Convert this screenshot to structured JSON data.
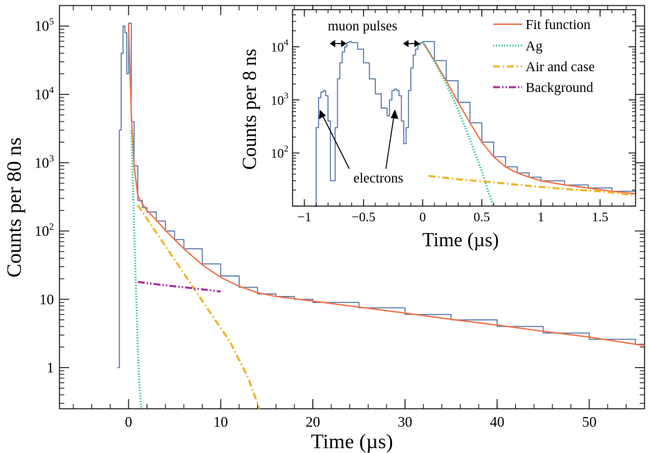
{
  "chart_data": [
    {
      "type": "line",
      "name": "main",
      "xlabel": "Time (µs)",
      "ylabel": "Counts per 80 ns",
      "xlim": [
        -7.5,
        56
      ],
      "ylim": [
        0.25,
        200000
      ],
      "yscale": "log",
      "grid": false,
      "x_ticks": [
        0,
        10,
        20,
        30,
        40,
        50
      ],
      "x_tick_labels": [
        "0",
        "10",
        "20",
        "30",
        "40",
        "50"
      ],
      "y_ticks": [
        1,
        10,
        100,
        1000,
        10000,
        100000
      ],
      "y_tick_labels": [
        {
          "base": "1",
          "exp": ""
        },
        {
          "base": "10",
          "exp": ""
        },
        {
          "base": "10",
          "exp": "2"
        },
        {
          "base": "10",
          "exp": "3"
        },
        {
          "base": "10",
          "exp": "4"
        },
        {
          "base": "10",
          "exp": "5"
        }
      ],
      "series": [
        {
          "role": "Data",
          "color": "#4a6fa5",
          "style": "histogram",
          "x": [
            -1.2,
            -1.0,
            -0.8,
            -0.6,
            -0.4,
            -0.2,
            0.0,
            0.3,
            0.6,
            1.0,
            1.5,
            2,
            3,
            4,
            5,
            6,
            8,
            10,
            12,
            14,
            16,
            18,
            20,
            25,
            30,
            35,
            40,
            45,
            50,
            55
          ],
          "y": [
            1,
            3000,
            40000,
            100000,
            80000,
            20000,
            110000,
            4000,
            900,
            280,
            220,
            190,
            140,
            100,
            75,
            55,
            33,
            22,
            15,
            12,
            11,
            10,
            9,
            7.5,
            6,
            5,
            4,
            3.2,
            2.6,
            2.2
          ]
        },
        {
          "role": "Fit function",
          "color": "#f0734a",
          "style": "solid",
          "x": [
            0,
            0.3,
            0.6,
            1.0,
            1.5,
            2,
            3,
            4,
            5,
            6,
            8,
            10,
            12,
            14,
            16,
            18,
            20,
            25,
            30,
            35,
            40,
            45,
            50,
            56
          ],
          "y": [
            110000,
            5000,
            900,
            330,
            250,
            200,
            145,
            102,
            75,
            55,
            32,
            21,
            15.5,
            12.5,
            11,
            10.2,
            9.4,
            7.7,
            6.3,
            5.1,
            4.2,
            3.4,
            2.8,
            2.1
          ]
        },
        {
          "role": "Ag",
          "color": "#2ec28e",
          "style": "dotted",
          "x": [
            0.3,
            0.6,
            0.8,
            1.0,
            1.2,
            1.4
          ],
          "y": [
            3000,
            120,
            15,
            2,
            0.5,
            0.25
          ]
        },
        {
          "role": "Air and case",
          "color": "#f0b429",
          "style": "dashdot",
          "x": [
            1.0,
            3,
            5,
            7,
            9,
            11,
            13,
            14.2
          ],
          "y": [
            240,
            95,
            38,
            15,
            6,
            2.4,
            0.7,
            0.25
          ]
        },
        {
          "role": "Background",
          "color": "#a5329e",
          "style": "dashdotdot",
          "x": [
            1.0,
            4,
            7,
            10
          ],
          "y": [
            18,
            16,
            14.5,
            13
          ]
        }
      ]
    },
    {
      "type": "line",
      "name": "inset",
      "xlabel": "Time (µs)",
      "ylabel": "Counts per 8 ns",
      "xlim": [
        -1.1,
        1.8
      ],
      "ylim": [
        10,
        50000
      ],
      "yscale": "log",
      "grid": false,
      "x_ticks": [
        -1,
        -0.5,
        0,
        0.5,
        1,
        1.5
      ],
      "x_tick_labels": [
        "−1",
        "−0.5",
        "0",
        "0.5",
        "1",
        "1.5"
      ],
      "y_ticks": [
        100,
        1000,
        10000
      ],
      "y_tick_labels": [
        {
          "base": "10",
          "exp": "2"
        },
        {
          "base": "10",
          "exp": "3"
        },
        {
          "base": "10",
          "exp": "4"
        }
      ],
      "legend_position": "top-right",
      "legend": [
        {
          "label": "Fit function",
          "color": "#f0734a",
          "style": "solid"
        },
        {
          "label": "Ag",
          "color": "#2ec28e",
          "style": "dotted"
        },
        {
          "label": "Air and case",
          "color": "#f0b429",
          "style": "dashdot"
        },
        {
          "label": "Background",
          "color": "#a5329e",
          "style": "dashdotdot"
        }
      ],
      "annotations": {
        "muon_pulses": "muon pulses",
        "electrons": "electrons"
      },
      "series": [
        {
          "role": "Data",
          "color": "#4a6fa5",
          "style": "histogram",
          "x": [
            -0.92,
            -0.9,
            -0.88,
            -0.86,
            -0.84,
            -0.82,
            -0.8,
            -0.78,
            -0.76,
            -0.74,
            -0.72,
            -0.7,
            -0.68,
            -0.66,
            -0.64,
            -0.62,
            -0.6,
            -0.55,
            -0.5,
            -0.45,
            -0.4,
            -0.35,
            -0.3,
            -0.28,
            -0.26,
            -0.24,
            -0.22,
            -0.2,
            -0.18,
            -0.16,
            -0.14,
            -0.12,
            -0.1,
            -0.08,
            -0.06,
            -0.04,
            -0.02,
            0.0,
            0.1,
            0.2,
            0.3,
            0.4,
            0.5,
            0.6,
            0.7,
            0.8,
            0.9,
            1.0,
            1.2,
            1.4,
            1.6,
            1.8
          ],
          "y": [
            10,
            300,
            1100,
            1400,
            1500,
            1200,
            400,
            30,
            30,
            300,
            2500,
            5000,
            8000,
            10000,
            12000,
            12500,
            12000,
            9000,
            5000,
            2500,
            1300,
            700,
            500,
            1000,
            1500,
            1600,
            1500,
            1200,
            400,
            150,
            300,
            1500,
            4000,
            7000,
            9000,
            11000,
            12000,
            12500,
            5500,
            2300,
            900,
            370,
            160,
            85,
            55,
            42,
            35,
            30,
            25,
            22,
            19,
            17
          ]
        },
        {
          "role": "Fit function",
          "color": "#f0734a",
          "style": "solid",
          "x": [
            0.0,
            0.1,
            0.2,
            0.3,
            0.4,
            0.5,
            0.6,
            0.7,
            0.8,
            0.9,
            1.0,
            1.2,
            1.4,
            1.6,
            1.8
          ],
          "y": [
            12500,
            5500,
            2300,
            900,
            370,
            160,
            85,
            55,
            42,
            35,
            30,
            25,
            22,
            19,
            17
          ]
        },
        {
          "role": "Ag",
          "color": "#2ec28e",
          "style": "dotted",
          "x": [
            0.0,
            0.1,
            0.2,
            0.3,
            0.4,
            0.5,
            0.55,
            0.6
          ],
          "y": [
            12500,
            5300,
            2000,
            650,
            180,
            45,
            20,
            10
          ]
        },
        {
          "role": "Air and case",
          "color": "#f0b429",
          "style": "dashdot",
          "x": [
            0.05,
            0.3,
            0.6,
            0.9,
            1.2,
            1.5,
            1.8
          ],
          "y": [
            37,
            32,
            28,
            24,
            21,
            19,
            16
          ]
        }
      ]
    }
  ]
}
